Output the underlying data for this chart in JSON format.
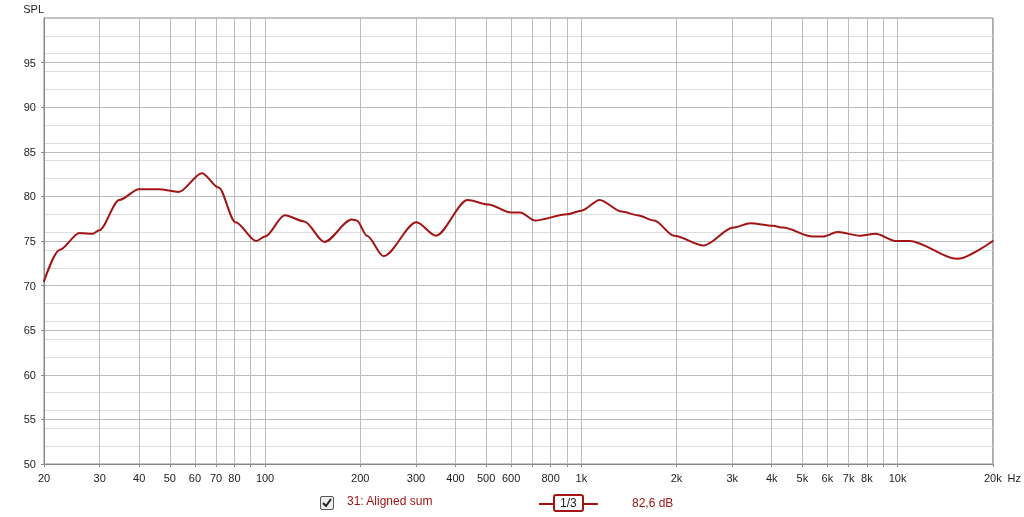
{
  "chart_data": {
    "type": "line",
    "ylabel": "SPL",
    "log": "x",
    "grid": true,
    "legend": "bottom",
    "marker": "none",
    "line_style": "solid",
    "xlim": [
      20,
      20000
    ],
    "xticks": [
      20,
      30,
      40,
      50,
      60,
      70,
      80,
      {
        "value": 90,
        "label": null
      },
      100,
      200,
      300,
      400,
      500,
      600,
      {
        "value": 700,
        "label": null
      },
      800,
      {
        "value": 900,
        "label": null
      },
      {
        "value": 1000,
        "label": "1k"
      },
      {
        "value": 2000,
        "label": "2k"
      },
      {
        "value": 3000,
        "label": "3k"
      },
      {
        "value": 4000,
        "label": "4k"
      },
      {
        "value": 5000,
        "label": "5k"
      },
      {
        "value": 6000,
        "label": "6k"
      },
      {
        "value": 7000,
        "label": "7k"
      },
      {
        "value": 8000,
        "label": "8k"
      },
      {
        "value": 9000,
        "label": null
      },
      {
        "value": 10000,
        "label": "10k"
      },
      {
        "value": 20000,
        "label": "20k"
      }
    ],
    "xlabel": "Hz",
    "ylim": [
      50,
      100
    ],
    "yticks": [
      50,
      55,
      60,
      65,
      70,
      75,
      80,
      85,
      90,
      95
    ],
    "annotations": [
      "1/3",
      "82,6 dB"
    ],
    "series": [
      {
        "name": "31: Aligned sum",
        "color": "#a31515",
        "x": [
          20,
          22.4,
          25.9,
          28.5,
          29.9,
          34.6,
          39.9,
          46.1,
          53.3,
          63.2,
          71.3,
          80.6,
          93.8,
          100,
          115.4,
          133,
          154,
          188,
          195,
          210,
          237,
          301,
          347,
          437,
          508,
          597,
          641,
          714,
          902,
          1000,
          1143,
          1342,
          1504,
          1700,
          1964,
          2437,
          3027,
          3420,
          4036,
          4338,
          5390,
          5800,
          6470,
          7590,
          8520,
          9850,
          10900,
          15450,
          20000
        ],
        "values": [
          70.5,
          74.0,
          75.9,
          75.8,
          76.2,
          79.6,
          80.8,
          80.8,
          80.5,
          82.6,
          81.0,
          77.1,
          75.0,
          75.5,
          77.9,
          77.2,
          74.9,
          77.4,
          77.3,
          75.6,
          73.3,
          77.1,
          75.6,
          79.6,
          79.1,
          78.2,
          78.2,
          77.3,
          78.0,
          78.4,
          79.6,
          78.3,
          77.9,
          77.3,
          75.6,
          74.5,
          76.5,
          77.0,
          76.7,
          76.5,
          75.5,
          75.5,
          76.0,
          75.6,
          75.8,
          75.0,
          75.0,
          73.0,
          75.0
        ]
      }
    ]
  }
}
